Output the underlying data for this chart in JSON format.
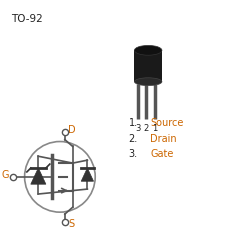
{
  "title": "TO-92",
  "pin_labels": [
    "1. Source",
    "2. Drain",
    "3. Gate"
  ],
  "pin_numbers": [
    "3",
    "2",
    "1"
  ],
  "bg_color": "#ffffff",
  "text_color_black": "#222222",
  "text_color_orange": "#cc6600",
  "schematic_color": "#555555",
  "figsize": [
    2.3,
    2.35
  ],
  "dpi": 100
}
